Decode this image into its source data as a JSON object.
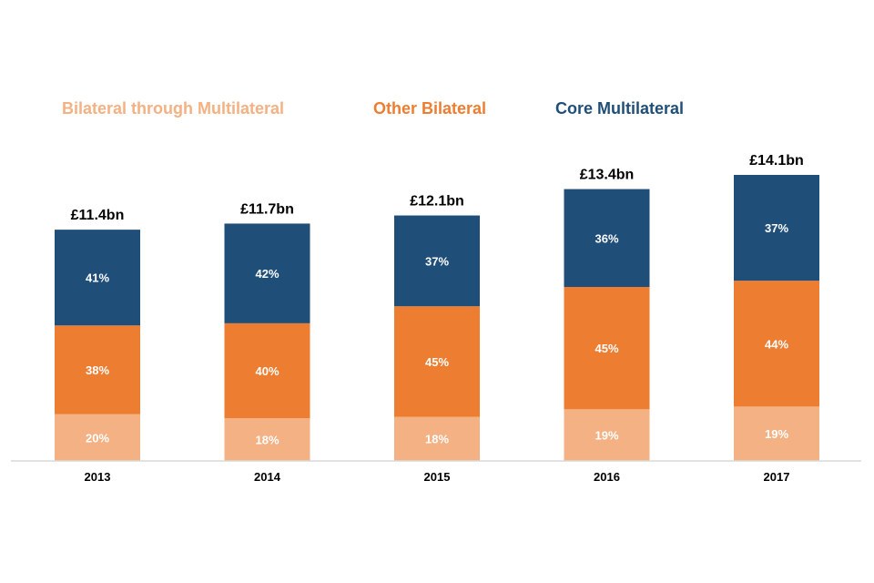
{
  "chart_data": {
    "type": "bar",
    "stacked": true,
    "title": "",
    "xlabel": "",
    "ylabel": "",
    "categories": [
      "2013",
      "2014",
      "2015",
      "2016",
      "2017"
    ],
    "totals": [
      "£11.4bn",
      "£11.7bn",
      "£12.1bn",
      "£13.4bn",
      "£14.1bn"
    ],
    "total_values": [
      11.4,
      11.7,
      12.1,
      13.4,
      14.1
    ],
    "unit": "£bn",
    "ylim": [
      0,
      14.1
    ],
    "grid": false,
    "legend_position": "top",
    "series": [
      {
        "name": "Bilateral through Multilateral",
        "color": "#F4B183",
        "percent_values": [
          20,
          18,
          18,
          19,
          19
        ],
        "labels": [
          "20%",
          "18%",
          "18%",
          "19%",
          "19%"
        ]
      },
      {
        "name": "Other Bilateral",
        "color": "#ED7D31",
        "percent_values": [
          38,
          40,
          45,
          45,
          44
        ],
        "labels": [
          "38%",
          "40%",
          "45%",
          "45%",
          "44%"
        ]
      },
      {
        "name": "Core Multilateral",
        "color": "#1F4E79",
        "percent_values": [
          41,
          42,
          37,
          36,
          37
        ],
        "labels": [
          "41%",
          "42%",
          "37%",
          "36%",
          "37%"
        ]
      }
    ]
  }
}
